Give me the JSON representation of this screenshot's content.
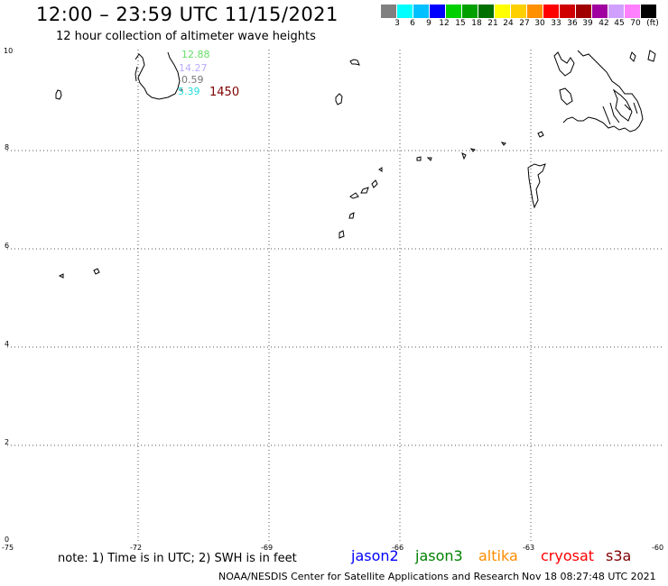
{
  "title": "12:00 – 23:59 UTC 11/15/2021",
  "subtitle": "12 hour collection of altimeter wave heights",
  "scale": {
    "unit": "(ft)",
    "labels": [
      "3",
      "6",
      "9",
      "12",
      "15",
      "18",
      "21",
      "24",
      "27",
      "30",
      "33",
      "36",
      "39",
      "42",
      "45",
      "70"
    ],
    "colors": [
      "#808080",
      "#00ffff",
      "#00c0ff",
      "#0000ff",
      "#00d000",
      "#00a000",
      "#007000",
      "#ffff00",
      "#ffd000",
      "#ff9000",
      "#ff0000",
      "#d00000",
      "#a00000",
      "#a000a0",
      "#d0a0ff",
      "#ff80ff",
      "#000000"
    ]
  },
  "axes": {
    "x_ticks": [
      "-75",
      "-72",
      "-69",
      "-66",
      "-63",
      "-60"
    ],
    "y_ticks": [
      "0",
      "2",
      "4",
      "6",
      "8",
      "10"
    ],
    "lon_range": [
      -75,
      -60
    ],
    "lat_range": [
      0,
      10
    ]
  },
  "annotations": [
    {
      "text": "12.88",
      "color": "#66dd66"
    },
    {
      "text": "14.27",
      "color": "#bbaaff"
    },
    {
      "text": "0.59",
      "color": "#777777"
    },
    {
      "text": "5.39",
      "color": "#22dddd"
    },
    {
      "text": "1450",
      "color": "#800000"
    }
  ],
  "footer": {
    "note": "note: 1) Time is in UTC; 2) SWH is in feet",
    "satellites": [
      {
        "name": "jason2",
        "color": "#0000ff"
      },
      {
        "name": "jason3",
        "color": "#008000"
      },
      {
        "name": "altika",
        "color": "#ff8c00"
      },
      {
        "name": "cryosat",
        "color": "#ff0000"
      },
      {
        "name": "s3a",
        "color": "#800000"
      }
    ],
    "credit": "NOAA/NESDIS Center for Satellite Applications and Research",
    "timestamp": "Nov 18 08:27:48 UTC 2021"
  }
}
